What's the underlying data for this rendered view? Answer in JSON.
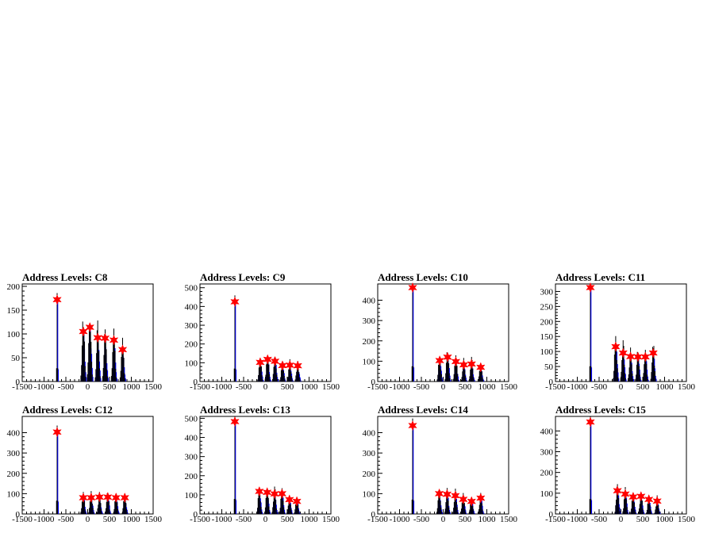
{
  "x_axis": {
    "range": [
      -1500,
      1500
    ],
    "ticks": [
      -1500,
      -1000,
      -500,
      0,
      500,
      1000,
      1500
    ]
  },
  "colors": {
    "hist_black": "#000000",
    "hist_blue": "#0000ff",
    "marker": "#ff0000"
  },
  "chart_data": [
    {
      "type": "histogram",
      "title": "Address Levels: C8",
      "xlim": [
        -1500,
        1500
      ],
      "ylim": [
        0,
        205
      ],
      "yticks": [
        0,
        50,
        100,
        150,
        200
      ],
      "peaks": [
        {
          "x": -700,
          "y": 172
        },
        {
          "x": -100,
          "y": 105
        },
        {
          "x": 50,
          "y": 114
        },
        {
          "x": 230,
          "y": 92
        },
        {
          "x": 400,
          "y": 91
        },
        {
          "x": 600,
          "y": 87
        },
        {
          "x": 800,
          "y": 67
        }
      ]
    },
    {
      "type": "histogram",
      "title": "Address Levels: C9",
      "xlim": [
        -1500,
        1500
      ],
      "ylim": [
        0,
        520
      ],
      "yticks": [
        0,
        100,
        200,
        300,
        400,
        500
      ],
      "peaks": [
        {
          "x": -700,
          "y": 425
        },
        {
          "x": -120,
          "y": 102
        },
        {
          "x": 50,
          "y": 118
        },
        {
          "x": 220,
          "y": 108
        },
        {
          "x": 390,
          "y": 85
        },
        {
          "x": 560,
          "y": 87
        },
        {
          "x": 740,
          "y": 84
        }
      ]
    },
    {
      "type": "histogram",
      "title": "Address Levels: C10",
      "xlim": [
        -1500,
        1500
      ],
      "ylim": [
        0,
        480
      ],
      "yticks": [
        0,
        100,
        200,
        300,
        400
      ],
      "peaks": [
        {
          "x": -700,
          "y": 462
        },
        {
          "x": -80,
          "y": 103
        },
        {
          "x": 100,
          "y": 120
        },
        {
          "x": 290,
          "y": 98
        },
        {
          "x": 470,
          "y": 82
        },
        {
          "x": 650,
          "y": 86
        },
        {
          "x": 860,
          "y": 70
        }
      ]
    },
    {
      "type": "histogram",
      "title": "Address Levels: C11",
      "xlim": [
        -1500,
        1500
      ],
      "ylim": [
        0,
        325
      ],
      "yticks": [
        0,
        50,
        100,
        150,
        200,
        250,
        300
      ],
      "peaks": [
        {
          "x": -700,
          "y": 313
        },
        {
          "x": -120,
          "y": 116
        },
        {
          "x": 50,
          "y": 95
        },
        {
          "x": 220,
          "y": 83
        },
        {
          "x": 390,
          "y": 82
        },
        {
          "x": 560,
          "y": 82
        },
        {
          "x": 740,
          "y": 95
        }
      ]
    },
    {
      "type": "histogram",
      "title": "Address Levels: C12",
      "xlim": [
        -1500,
        1500
      ],
      "ylim": [
        0,
        480
      ],
      "yticks": [
        0,
        100,
        200,
        300,
        400
      ],
      "peaks": [
        {
          "x": -700,
          "y": 403
        },
        {
          "x": -100,
          "y": 80
        },
        {
          "x": 80,
          "y": 80
        },
        {
          "x": 270,
          "y": 83
        },
        {
          "x": 460,
          "y": 83
        },
        {
          "x": 650,
          "y": 80
        },
        {
          "x": 850,
          "y": 80
        }
      ]
    },
    {
      "type": "histogram",
      "title": "Address Levels: C13",
      "xlim": [
        -1500,
        1500
      ],
      "ylim": [
        0,
        510
      ],
      "yticks": [
        0,
        100,
        200,
        300,
        400,
        500
      ],
      "peaks": [
        {
          "x": -700,
          "y": 483
        },
        {
          "x": -140,
          "y": 118
        },
        {
          "x": 40,
          "y": 113
        },
        {
          "x": 210,
          "y": 105
        },
        {
          "x": 380,
          "y": 106
        },
        {
          "x": 550,
          "y": 75
        },
        {
          "x": 720,
          "y": 66
        }
      ]
    },
    {
      "type": "histogram",
      "title": "Address Levels: C14",
      "xlim": [
        -1500,
        1500
      ],
      "ylim": [
        0,
        480
      ],
      "yticks": [
        0,
        100,
        200,
        300,
        400
      ],
      "peaks": [
        {
          "x": -700,
          "y": 435
        },
        {
          "x": -90,
          "y": 100
        },
        {
          "x": 90,
          "y": 97
        },
        {
          "x": 280,
          "y": 90
        },
        {
          "x": 460,
          "y": 72
        },
        {
          "x": 650,
          "y": 62
        },
        {
          "x": 860,
          "y": 78
        }
      ]
    },
    {
      "type": "histogram",
      "title": "Address Levels: C15",
      "xlim": [
        -1500,
        1500
      ],
      "ylim": [
        0,
        470
      ],
      "yticks": [
        0,
        100,
        200,
        300,
        400
      ],
      "peaks": [
        {
          "x": -700,
          "y": 443
        },
        {
          "x": -80,
          "y": 112
        },
        {
          "x": 100,
          "y": 96
        },
        {
          "x": 280,
          "y": 82
        },
        {
          "x": 460,
          "y": 85
        },
        {
          "x": 640,
          "y": 70
        },
        {
          "x": 830,
          "y": 62
        }
      ]
    }
  ]
}
